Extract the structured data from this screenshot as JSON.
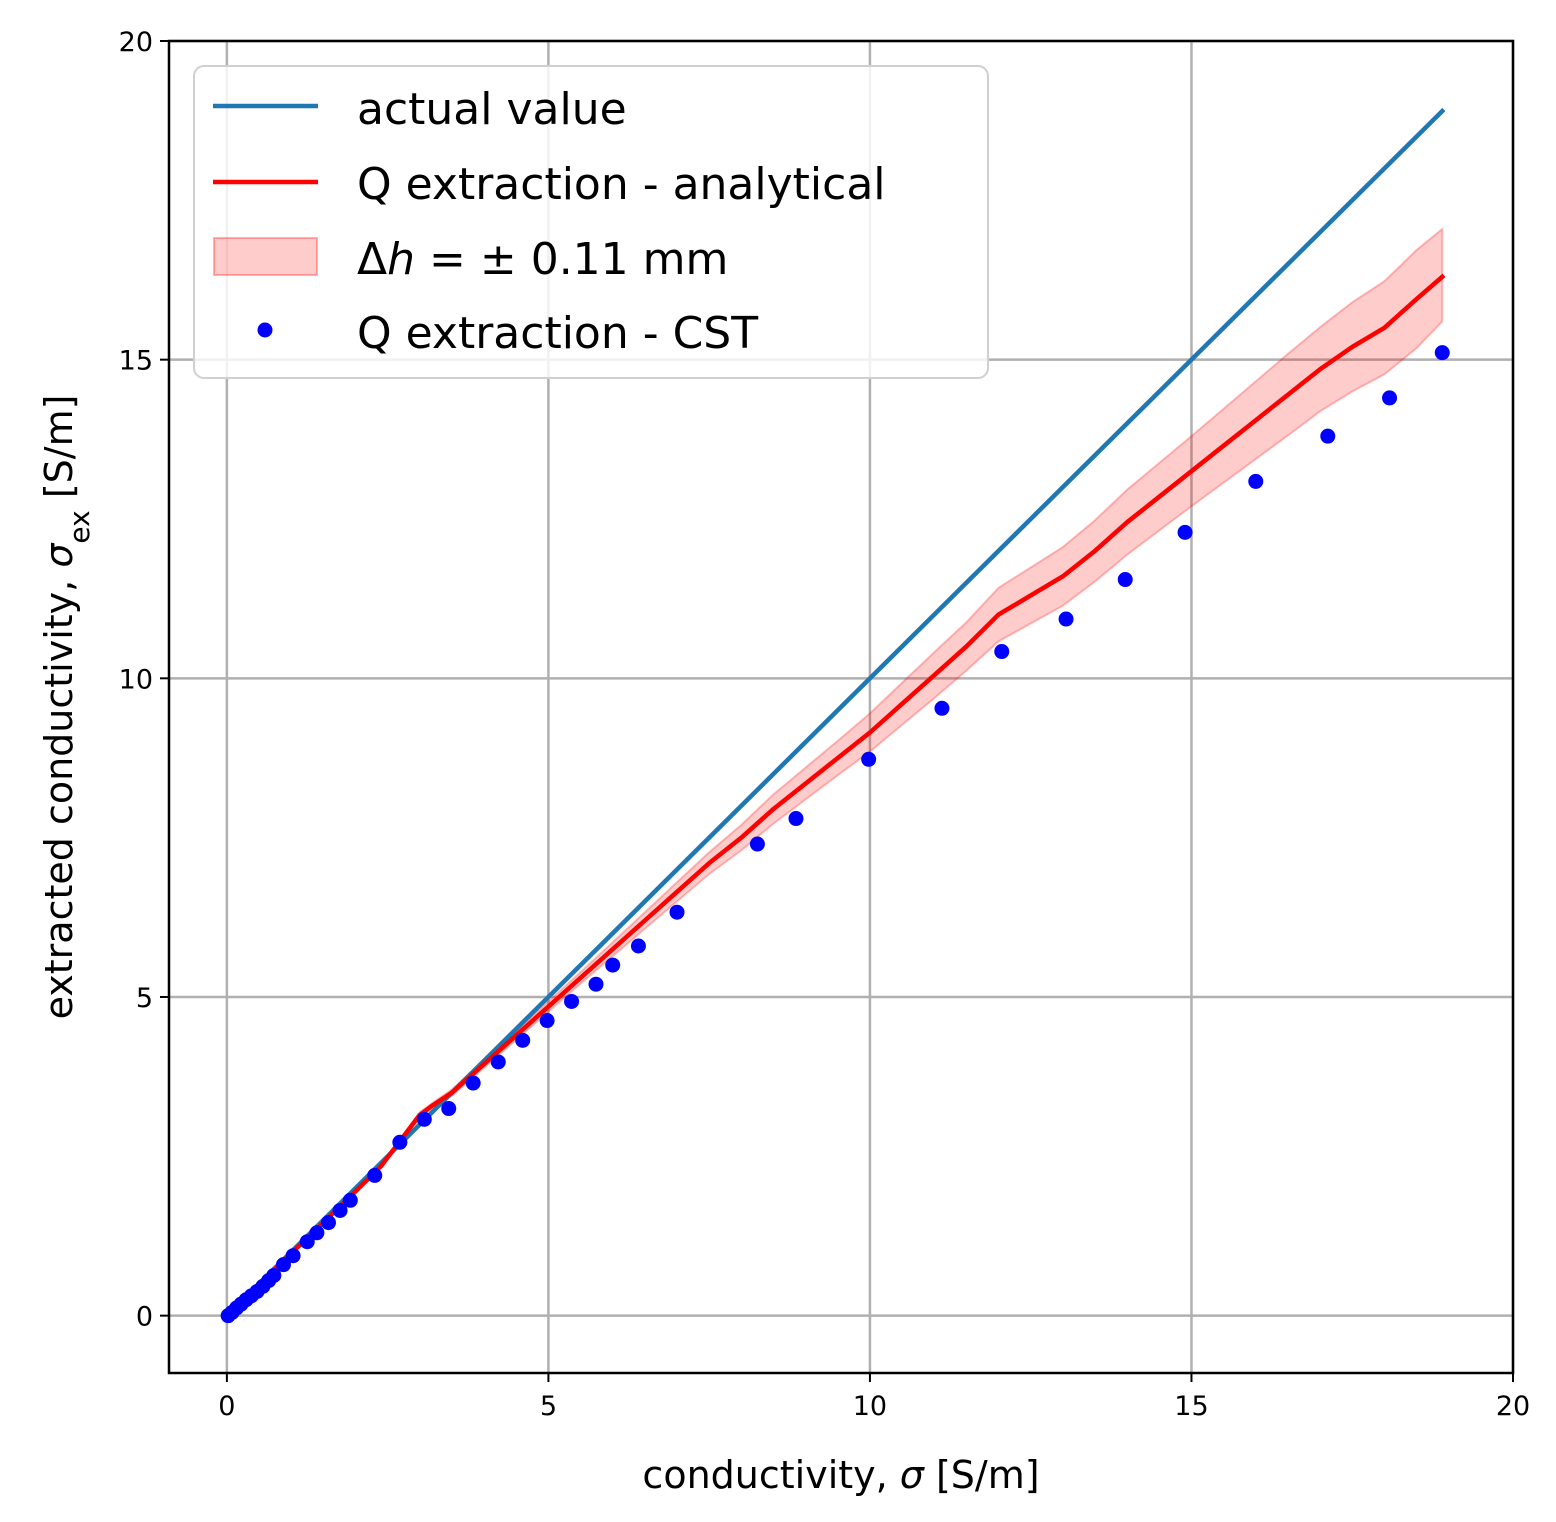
{
  "chart_data": {
    "type": "line",
    "title": "",
    "xlabel": "conductivity, σ [S/m]",
    "xlabel_parts": {
      "prefix": "conductivity, ",
      "symbol": "σ",
      "suffix": " [S/m]"
    },
    "ylabel": "extracted conductivity, σex [S/m]",
    "ylabel_parts": {
      "prefix": "extracted conductivity, ",
      "symbol": "σ",
      "subscript": "ex",
      "suffix": " [S/m]"
    },
    "xlim": [
      -0.9,
      20
    ],
    "ylim": [
      -0.9,
      20
    ],
    "xticks": [
      0,
      5,
      10,
      15,
      20
    ],
    "yticks": [
      0,
      5,
      10,
      15,
      20
    ],
    "grid": true,
    "legend_position": "top-left",
    "colors": {
      "actual": "#1f77b4",
      "analytical": "#ff0000",
      "band": "#ff0000",
      "cst": "#0000ff",
      "grid": "#b0b0b0",
      "axis": "#000000"
    },
    "series": [
      {
        "name": "actual value",
        "kind": "line",
        "x": [
          0,
          18.9
        ],
        "y": [
          0,
          18.9
        ]
      },
      {
        "name": "Q extraction - analytical",
        "kind": "line",
        "x": [
          0,
          0.5,
          1.0,
          1.5,
          2.0,
          2.4,
          2.7,
          3.0,
          3.2,
          3.5,
          4.0,
          4.5,
          5.0,
          5.5,
          6.0,
          6.5,
          7.0,
          7.5,
          8.0,
          8.5,
          9.0,
          9.5,
          10.0,
          10.5,
          11.0,
          11.5,
          12.0,
          12.5,
          13.0,
          13.5,
          14.0,
          14.5,
          15.0,
          15.5,
          16.0,
          16.5,
          17.0,
          17.5,
          18.0,
          18.5,
          18.9
        ],
        "y": [
          0,
          0.5,
          0.98,
          1.46,
          1.95,
          2.35,
          2.75,
          3.15,
          3.3,
          3.5,
          3.95,
          4.4,
          4.85,
          5.3,
          5.75,
          6.2,
          6.65,
          7.1,
          7.5,
          7.95,
          8.35,
          8.75,
          9.15,
          9.6,
          10.05,
          10.5,
          11.0,
          11.3,
          11.6,
          12.0,
          12.45,
          12.85,
          13.25,
          13.65,
          14.05,
          14.45,
          14.85,
          15.2,
          15.5,
          15.95,
          16.3
        ]
      },
      {
        "name": "Δh = ± 0.11 mm",
        "kind": "band",
        "x": [
          0,
          0.5,
          1.0,
          1.5,
          2.0,
          2.4,
          2.7,
          3.0,
          3.2,
          3.5,
          4.0,
          4.5,
          5.0,
          5.5,
          6.0,
          6.5,
          7.0,
          7.5,
          8.0,
          8.5,
          9.0,
          9.5,
          10.0,
          10.5,
          11.0,
          11.5,
          12.0,
          12.5,
          13.0,
          13.5,
          14.0,
          14.5,
          15.0,
          15.5,
          16.0,
          16.5,
          17.0,
          17.5,
          18.0,
          18.5,
          18.9
        ],
        "lower": [
          0,
          0.49,
          0.97,
          1.44,
          1.93,
          2.33,
          2.72,
          3.11,
          3.26,
          3.45,
          3.89,
          4.33,
          4.77,
          5.21,
          5.64,
          6.07,
          6.5,
          6.93,
          7.3,
          7.72,
          8.1,
          8.48,
          8.85,
          9.27,
          9.69,
          10.12,
          10.58,
          10.86,
          11.14,
          11.52,
          11.94,
          12.32,
          12.7,
          13.07,
          13.44,
          13.81,
          14.19,
          14.5,
          14.77,
          15.18,
          15.6
        ],
        "upper": [
          0,
          0.51,
          0.99,
          1.48,
          1.97,
          2.37,
          2.78,
          3.19,
          3.34,
          3.55,
          4.01,
          4.47,
          4.93,
          5.39,
          5.86,
          6.33,
          6.8,
          7.27,
          7.7,
          8.18,
          8.6,
          9.02,
          9.45,
          9.93,
          10.41,
          10.88,
          11.42,
          11.74,
          12.06,
          12.48,
          12.96,
          13.38,
          13.8,
          14.23,
          14.66,
          15.09,
          15.51,
          15.9,
          16.23,
          16.72,
          17.05
        ]
      },
      {
        "name": "Q extraction - CST",
        "kind": "scatter",
        "x": [
          0.02,
          0.08,
          0.15,
          0.22,
          0.3,
          0.38,
          0.47,
          0.56,
          0.65,
          0.73,
          0.88,
          1.03,
          1.25,
          1.4,
          1.58,
          1.76,
          1.92,
          2.3,
          2.69,
          3.07,
          3.45,
          3.83,
          4.22,
          4.6,
          4.98,
          5.36,
          5.74,
          6.0,
          6.4,
          7.0,
          8.25,
          8.85,
          9.98,
          11.12,
          12.05,
          13.05,
          13.97,
          14.9,
          16.0,
          17.12,
          18.08,
          18.9
        ],
        "y": [
          0.0,
          0.05,
          0.12,
          0.18,
          0.25,
          0.31,
          0.38,
          0.46,
          0.55,
          0.63,
          0.8,
          0.94,
          1.16,
          1.3,
          1.46,
          1.65,
          1.81,
          2.2,
          2.72,
          3.08,
          3.25,
          3.65,
          3.98,
          4.32,
          4.63,
          4.93,
          5.2,
          5.5,
          5.8,
          6.33,
          7.4,
          7.8,
          8.73,
          9.53,
          10.42,
          10.93,
          11.55,
          12.29,
          13.09,
          13.8,
          14.4,
          15.11
        ]
      }
    ],
    "legend": [
      {
        "label": "actual value",
        "kind": "line",
        "color": "#1f77b4"
      },
      {
        "label": "Q extraction - analytical",
        "kind": "line",
        "color": "#ff0000"
      },
      {
        "label": "Δh = ± 0.11 mm",
        "kind": "band",
        "color": "#ff0000",
        "parts": {
          "delta": "Δ",
          "h": "h",
          "rest": " = ± 0.11 mm"
        }
      },
      {
        "label": "Q extraction - CST",
        "kind": "marker",
        "color": "#0000ff"
      }
    ]
  }
}
